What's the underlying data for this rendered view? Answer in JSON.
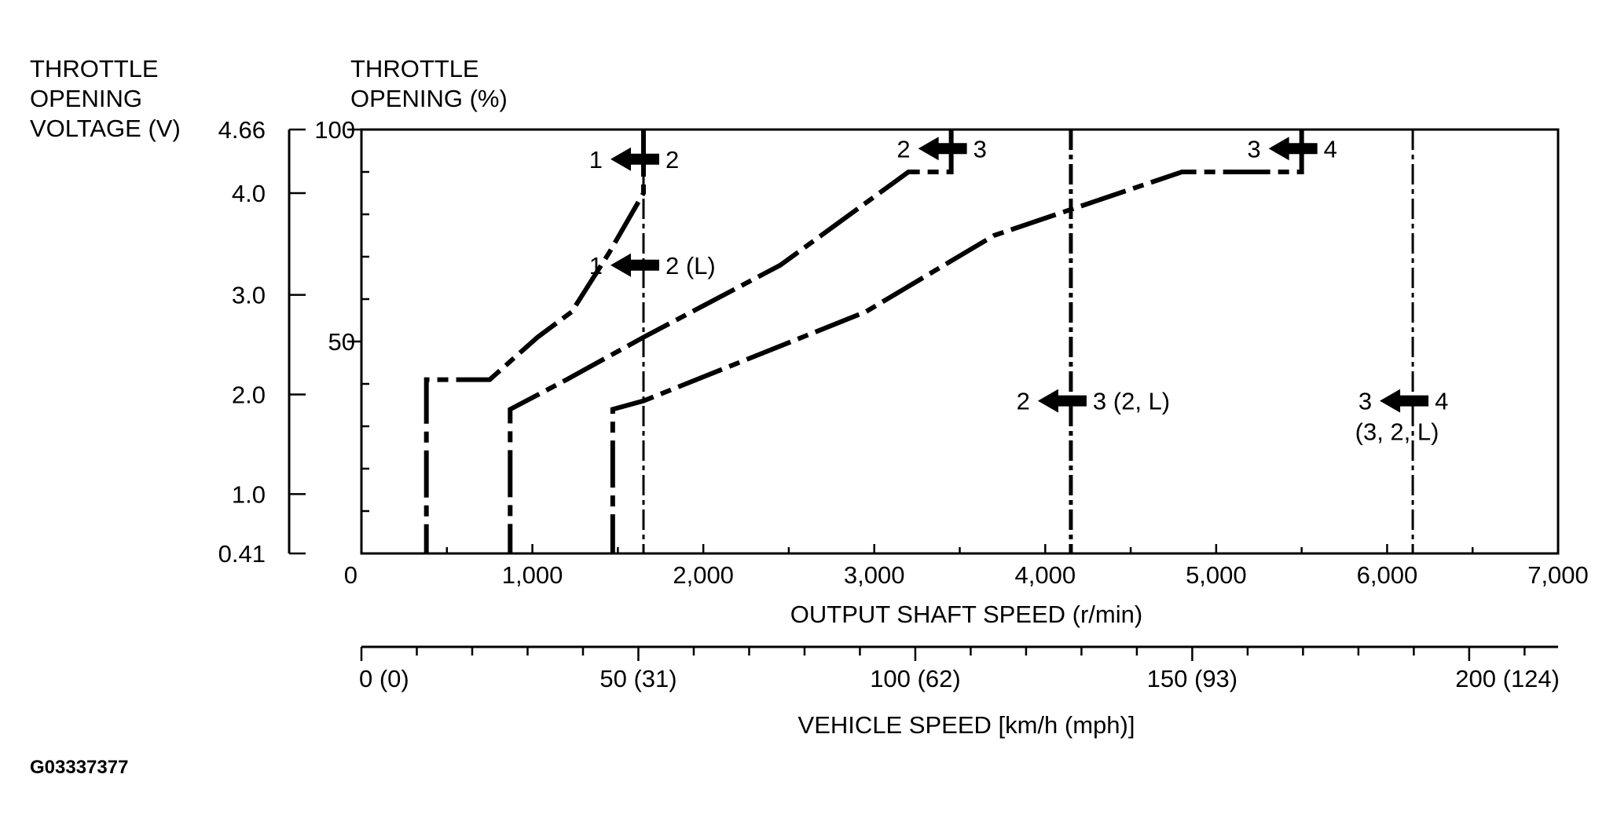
{
  "figure_code": "G03337377",
  "chart_data": {
    "type": "line",
    "voltage_axis": {
      "title": [
        "THROTTLE",
        "OPENING",
        "VOLTAGE (V)"
      ],
      "ticks": [
        {
          "label": "4.66",
          "pct": 100
        },
        {
          "label": "4.0",
          "pct": 85
        },
        {
          "label": "3.0",
          "pct": 61
        },
        {
          "label": "2.0",
          "pct": 37.5
        },
        {
          "label": "1.0",
          "pct": 14
        },
        {
          "label": "0.41",
          "pct": 0
        }
      ]
    },
    "throttle_axis": {
      "title": [
        "THROTTLE",
        "OPENING (%)"
      ],
      "ylim": [
        0,
        100
      ],
      "labeled_ticks": [
        {
          "label": "100",
          "value": 100
        },
        {
          "label": "50",
          "value": 50
        }
      ],
      "minor_ticks": [
        10,
        20,
        30,
        40,
        60,
        70,
        80,
        90
      ]
    },
    "x_axis": {
      "xlabel": "OUTPUT SHAFT SPEED (r/min)",
      "xlim": [
        0,
        7000
      ],
      "tick_labels": [
        "0",
        "1,000",
        "2,000",
        "3,000",
        "4,000",
        "5,000",
        "6,000",
        "7,000"
      ],
      "tick_values": [
        0,
        1000,
        2000,
        3000,
        4000,
        5000,
        6000,
        7000
      ]
    },
    "speed_axis": {
      "xlabel": "VEHICLE SPEED [km/h (mph)]",
      "rpm_per_kmh": 32.4,
      "tick_labels": [
        "0 (0)",
        "50 (31)",
        "100 (62)",
        "150 (93)",
        "200 (124)"
      ],
      "tick_values_kmh": [
        0,
        50,
        100,
        150,
        200
      ]
    },
    "upshift_lines": [
      {
        "from": "1",
        "to": "2",
        "points": [
          [
            1650,
            100
          ],
          [
            1650,
            85
          ],
          [
            1450,
            71
          ],
          [
            1230,
            57
          ],
          [
            1030,
            51
          ],
          [
            750,
            41
          ],
          [
            380,
            41
          ],
          [
            380,
            0
          ]
        ]
      },
      {
        "from": "2",
        "to": "3",
        "points": [
          [
            3450,
            100
          ],
          [
            3450,
            90
          ],
          [
            3200,
            90
          ],
          [
            2450,
            68
          ],
          [
            1650,
            51
          ],
          [
            1200,
            41
          ],
          [
            870,
            34
          ],
          [
            870,
            0
          ]
        ]
      },
      {
        "from": "3",
        "to": "4",
        "points": [
          [
            5500,
            100
          ],
          [
            5500,
            90
          ],
          [
            4800,
            90
          ],
          [
            3700,
            75
          ],
          [
            2950,
            57
          ],
          [
            1650,
            36
          ],
          [
            1470,
            34
          ],
          [
            1470,
            0
          ]
        ]
      }
    ],
    "vertical_shift_lines": [
      {
        "rpm": 1650,
        "style": "thin"
      },
      {
        "rpm": 4150,
        "style": "thick"
      },
      {
        "rpm": 6150,
        "style": "thin"
      }
    ],
    "shift_labels": [
      {
        "from": "1",
        "to": "2",
        "suffix": "",
        "rpm": 1650,
        "pct": 93
      },
      {
        "from": "1",
        "to": "2",
        "suffix": "(L)",
        "rpm": 1650,
        "pct": 68
      },
      {
        "from": "2",
        "to": "3",
        "suffix": "",
        "rpm": 3450,
        "pct": 95.5
      },
      {
        "from": "3",
        "to": "4",
        "suffix": "",
        "rpm": 5500,
        "pct": 95.5
      },
      {
        "from": "2",
        "to": "3",
        "suffix": "(2, L)",
        "rpm": 4150,
        "pct": 36
      },
      {
        "from": "3",
        "to": "4",
        "suffix": "",
        "second_line": "(3, 2, L)",
        "rpm": 6150,
        "pct": 36
      }
    ]
  }
}
